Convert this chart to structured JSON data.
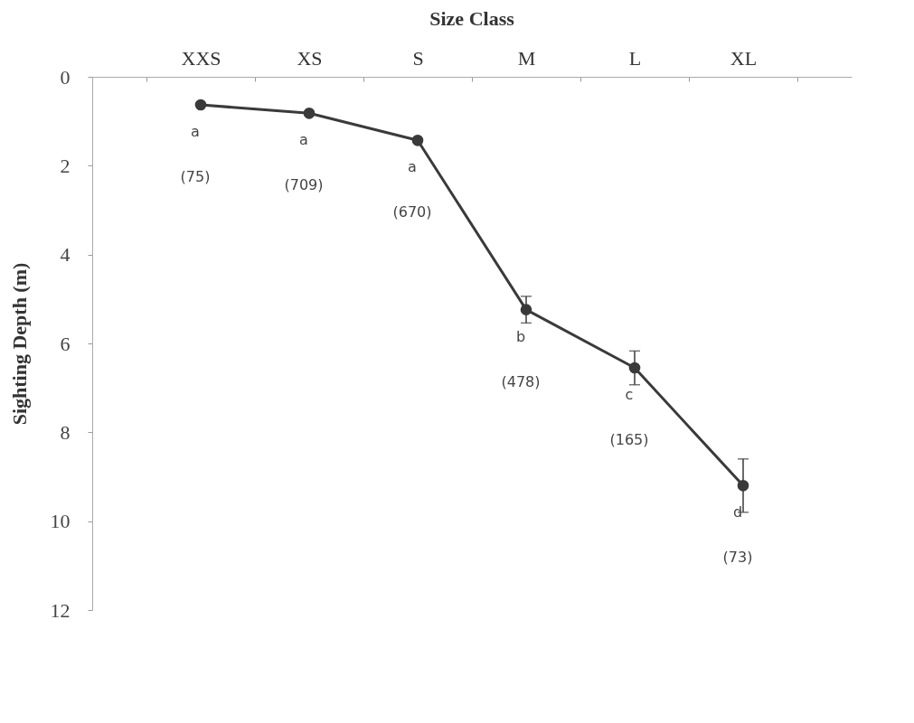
{
  "chart_data": {
    "type": "line",
    "title": "Size Class",
    "ylabel": "Sighting Depth (m)",
    "categories": [
      "XXS",
      "XS",
      "S",
      "M",
      "L",
      "XL"
    ],
    "series": [
      {
        "color": "#3a3a3a",
        "values": [
          0.63,
          0.82,
          1.43,
          5.24,
          6.55,
          9.2
        ],
        "errors": [
          null,
          null,
          null,
          0.3,
          0.38,
          0.6
        ]
      }
    ],
    "ylim": [
      12,
      0
    ],
    "yticks": [
      0,
      2,
      4,
      6,
      8,
      10,
      12
    ],
    "marker": "circle",
    "grid": false,
    "annotations": [
      "a",
      "(75)",
      "a",
      "(709)",
      "a",
      "(670)",
      "b",
      "(478)",
      "c",
      "(165)",
      "d",
      "(73)"
    ]
  }
}
